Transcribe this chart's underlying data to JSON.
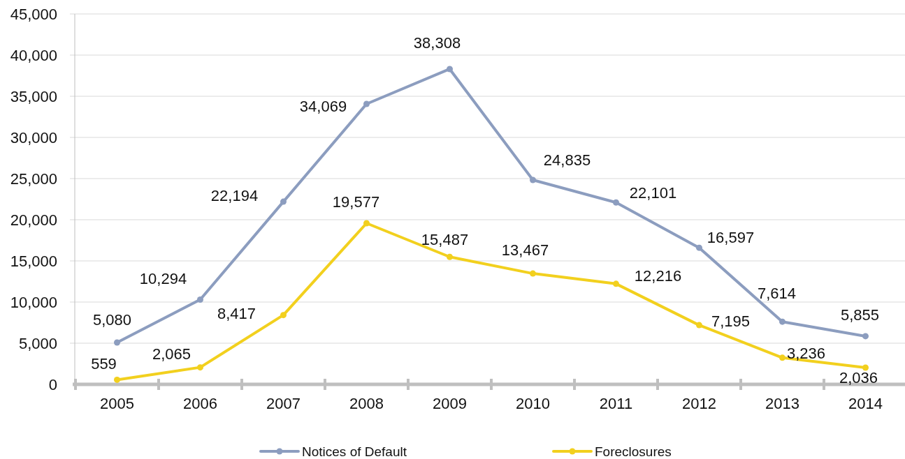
{
  "chart_data": {
    "type": "line",
    "categories": [
      "2005",
      "2006",
      "2007",
      "2008",
      "2009",
      "2010",
      "2011",
      "2012",
      "2013",
      "2014"
    ],
    "series": [
      {
        "name": "Notices of Default",
        "color": "#8c9dbf",
        "values": [
          5080,
          10294,
          22194,
          34069,
          38308,
          24835,
          22101,
          16597,
          7614,
          5855
        ],
        "value_labels": [
          "5,080",
          "10,294",
          "22,194",
          "34,069",
          "38,308",
          "24,835",
          "22,101",
          "16,597",
          "7,614",
          "5,855"
        ]
      },
      {
        "name": "Foreclosures",
        "color": "#f2d01e",
        "values": [
          559,
          2065,
          8417,
          19577,
          15487,
          13467,
          12216,
          7195,
          3236,
          2036
        ],
        "value_labels": [
          "559",
          "2,065",
          "8,417",
          "19,577",
          "15,487",
          "13,467",
          "12,216",
          "7,195",
          "3,236",
          "2,036"
        ]
      }
    ],
    "ylim": [
      0,
      45000
    ],
    "yticks": [
      {
        "value": 0,
        "label": "0"
      },
      {
        "value": 5000,
        "label": "5,000"
      },
      {
        "value": 10000,
        "label": "10,000"
      },
      {
        "value": 15000,
        "label": "15,000"
      },
      {
        "value": 20000,
        "label": "20,000"
      },
      {
        "value": 25000,
        "label": "25,000"
      },
      {
        "value": 30000,
        "label": "30,000"
      },
      {
        "value": 35000,
        "label": "35,000"
      },
      {
        "value": 40000,
        "label": "40,000"
      },
      {
        "value": 45000,
        "label": "45,000"
      }
    ],
    "grid": "y",
    "legend": "bottom",
    "marker": "circle",
    "line_style": "solid"
  }
}
